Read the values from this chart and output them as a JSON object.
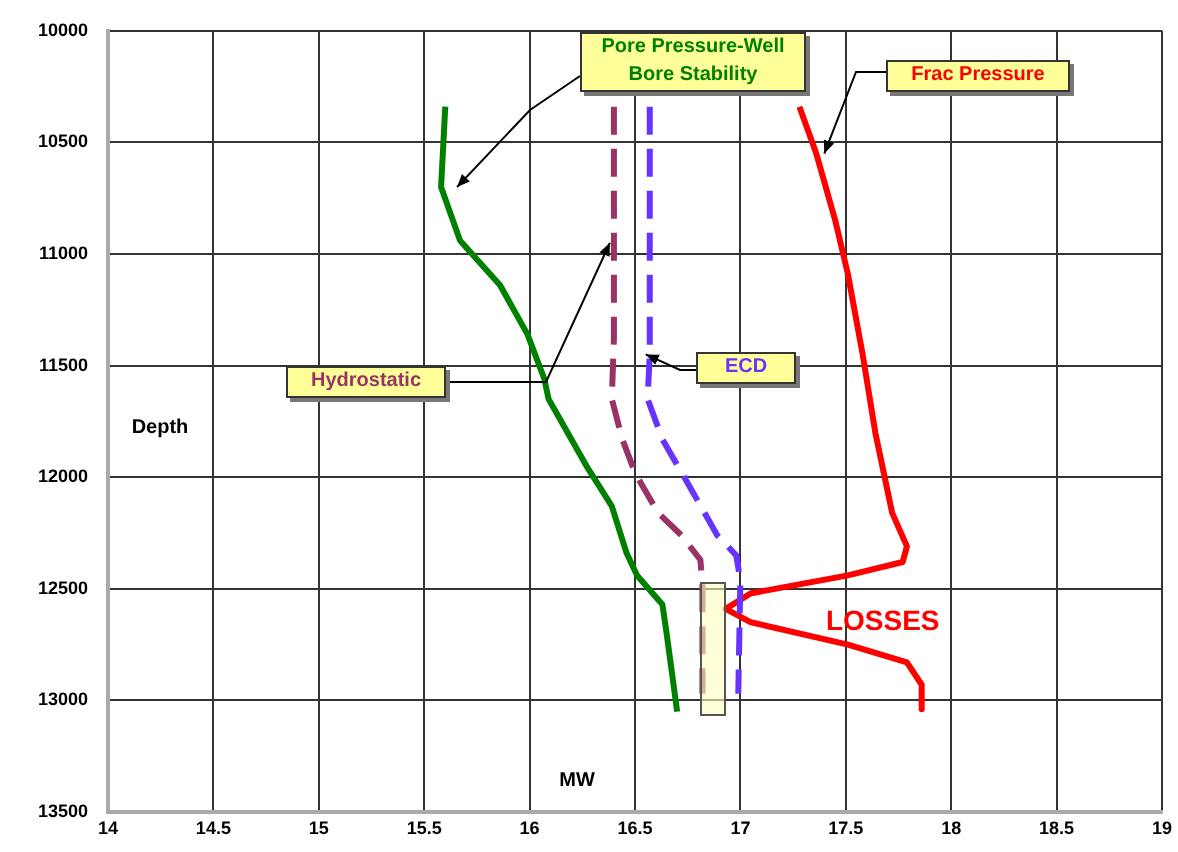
{
  "chart_data": {
    "type": "line",
    "xlabel": "MW",
    "ylabel": "Depth",
    "xlim": [
      14,
      19
    ],
    "xticks": [
      14,
      14.5,
      15,
      15.5,
      16,
      16.5,
      17,
      17.5,
      18,
      18.5,
      19
    ],
    "ylim": [
      13500,
      10000
    ],
    "yticks": [
      10000,
      10500,
      11000,
      11500,
      12000,
      12500,
      13000,
      13500
    ],
    "grid": true,
    "legend": false,
    "marker": "none",
    "annotations": [
      "LOSSES"
    ],
    "series": [
      {
        "name": "Pore Pressure-Well Bore Stability",
        "color": "#008000",
        "line_style": "solid",
        "x": [
          15.6,
          15.58,
          15.67,
          15.86,
          15.99,
          16.07,
          16.09,
          16.27,
          16.39,
          16.46,
          16.51,
          16.63,
          16.65,
          16.7
        ],
        "values": [
          10340,
          10700,
          10940,
          11140,
          11360,
          11560,
          11650,
          11950,
          12130,
          12340,
          12440,
          12570,
          12700,
          13050
        ]
      },
      {
        "name": "Hydrostatic",
        "color": "#993366",
        "line_style": "dashed",
        "x": [
          16.4,
          16.4,
          16.4,
          16.39,
          16.44,
          16.5,
          16.61,
          16.72,
          16.81,
          16.82,
          16.82
        ],
        "values": [
          10340,
          10950,
          11380,
          11650,
          11830,
          11980,
          12160,
          12260,
          12370,
          12480,
          12970
        ]
      },
      {
        "name": "ECD",
        "color": "#6633ff",
        "line_style": "dashed",
        "x": [
          16.57,
          16.57,
          16.56,
          16.63,
          16.74,
          16.89,
          16.98,
          17,
          16.99
        ],
        "values": [
          10340,
          11450,
          11650,
          11830,
          12010,
          12260,
          12350,
          12460,
          12970
        ]
      },
      {
        "name": "Frac Pressure",
        "color": "#ff0000",
        "line_style": "solid",
        "x": [
          17.28,
          17.36,
          17.45,
          17.51,
          17.58,
          17.64,
          17.72,
          17.79,
          17.77,
          17.51,
          17.05,
          16.93,
          17.05,
          17.51,
          17.79,
          17.86,
          17.86
        ],
        "values": [
          10340,
          10550,
          10850,
          11090,
          11450,
          11800,
          12160,
          12310,
          12380,
          12440,
          12520,
          12590,
          12650,
          12750,
          12830,
          12930,
          13040
        ]
      }
    ]
  }
}
